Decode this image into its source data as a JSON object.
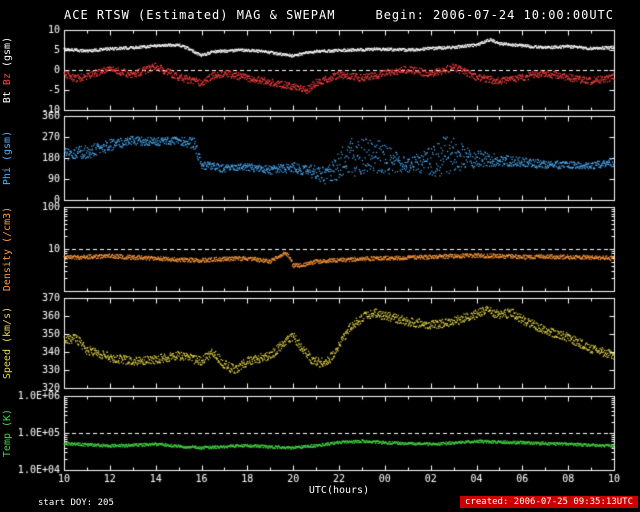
{
  "header": {
    "title": "ACE RTSW (Estimated) MAG & SWEPAM",
    "begin": "Begin: 2006-07-24 10:00:00UTC"
  },
  "footer": {
    "start_doy": "start DOY: 205",
    "created": "created: 2006-07-25 09:35:13UTC"
  },
  "colors": {
    "background": "#000000",
    "frame": "#ffffff",
    "created_badge_bg": "#cc0000"
  },
  "x": {
    "label": "UTC(hours)",
    "range_hours": [
      0,
      24
    ],
    "tick_labels": [
      "10",
      "12",
      "14",
      "16",
      "18",
      "20",
      "22",
      "00",
      "02",
      "04",
      "06",
      "08",
      "10"
    ]
  },
  "chart_data": [
    {
      "type": "scatter",
      "name": "magnetic-field",
      "ylabel_parts": [
        {
          "text": "Bt",
          "color": "#ffffff"
        },
        {
          "text": "Bz",
          "color": "#ff4040"
        },
        {
          "text": "(gsm)",
          "color": "#ffffff"
        }
      ],
      "yscale": "linear",
      "ylim": [
        -10,
        10
      ],
      "yticks": [
        {
          "v": 10,
          "label": "10"
        },
        {
          "v": 5,
          "label": "5"
        },
        {
          "v": 0,
          "label": "0"
        },
        {
          "v": -5,
          "label": "-5"
        },
        {
          "v": -10,
          "label": "-10"
        }
      ],
      "dashed_y": 0,
      "series": [
        {
          "name": "Bt",
          "color": "#ffffff",
          "noise": 0.35,
          "points": [
            [
              0,
              5.2
            ],
            [
              1,
              4.8
            ],
            [
              2,
              5.3
            ],
            [
              3,
              5.6
            ],
            [
              4,
              6.1
            ],
            [
              5,
              6.3
            ],
            [
              5.5,
              5.2
            ],
            [
              6,
              3.6
            ],
            [
              6.5,
              4.6
            ],
            [
              7,
              4.8
            ],
            [
              8,
              5.0
            ],
            [
              9,
              4.4
            ],
            [
              9.5,
              3.9
            ],
            [
              10,
              3.6
            ],
            [
              10.5,
              4.2
            ],
            [
              11,
              4.6
            ],
            [
              12,
              4.9
            ],
            [
              13,
              5.1
            ],
            [
              14,
              5.2
            ],
            [
              15,
              5.0
            ],
            [
              16,
              5.4
            ],
            [
              17,
              5.7
            ],
            [
              18,
              6.3
            ],
            [
              18.6,
              7.6
            ],
            [
              19,
              6.6
            ],
            [
              20,
              6.1
            ],
            [
              21,
              5.6
            ],
            [
              22,
              5.9
            ],
            [
              23,
              5.4
            ],
            [
              24,
              5.7
            ]
          ]
        },
        {
          "name": "Bz",
          "color": "#ff4040",
          "noise": 0.9,
          "points": [
            [
              0,
              -0.8
            ],
            [
              0.5,
              -2.2
            ],
            [
              1,
              -1.5
            ],
            [
              2,
              0.3
            ],
            [
              3,
              -1.2
            ],
            [
              4,
              1.0
            ],
            [
              5,
              -1.8
            ],
            [
              6,
              -3.2
            ],
            [
              6.5,
              -1.5
            ],
            [
              7,
              -0.8
            ],
            [
              8,
              -2.0
            ],
            [
              9,
              -3.0
            ],
            [
              10,
              -4.2
            ],
            [
              10.6,
              -5.0
            ],
            [
              11,
              -3.2
            ],
            [
              12,
              -1.2
            ],
            [
              13,
              -2.0
            ],
            [
              14,
              -0.8
            ],
            [
              15,
              0.2
            ],
            [
              16,
              -1.0
            ],
            [
              17,
              0.8
            ],
            [
              18,
              -1.8
            ],
            [
              19,
              -2.8
            ],
            [
              20,
              -1.8
            ],
            [
              21,
              -0.8
            ],
            [
              22,
              -1.8
            ],
            [
              23,
              -2.8
            ],
            [
              24,
              -1.8
            ]
          ]
        }
      ]
    },
    {
      "type": "scatter",
      "name": "phi",
      "ylabel_parts": [
        {
          "text": "Phi (gsm)",
          "color": "#4db2ff"
        }
      ],
      "yscale": "linear",
      "ylim": [
        0,
        360
      ],
      "yticks": [
        {
          "v": 360,
          "label": "360"
        },
        {
          "v": 270,
          "label": "270"
        },
        {
          "v": 180,
          "label": "180"
        },
        {
          "v": 90,
          "label": "90"
        },
        {
          "v": 0,
          "label": "0"
        }
      ],
      "dashed_y": null,
      "series": [
        {
          "name": "Phi",
          "color": "#4db2ff",
          "noise": 0,
          "points": [
            [
              0,
              195,
              25
            ],
            [
              1,
              205,
              30
            ],
            [
              2,
              235,
              25
            ],
            [
              3,
              255,
              18
            ],
            [
              4,
              250,
              18
            ],
            [
              5,
              255,
              15
            ],
            [
              5.7,
              240,
              30
            ],
            [
              6,
              150,
              20
            ],
            [
              7,
              135,
              15
            ],
            [
              8,
              142,
              15
            ],
            [
              9,
              128,
              18
            ],
            [
              10,
              140,
              22
            ],
            [
              11,
              118,
              28
            ],
            [
              11.5,
              100,
              40
            ],
            [
              12,
              150,
              60
            ],
            [
              12.5,
              185,
              85
            ],
            [
              13,
              175,
              85
            ],
            [
              13.5,
              195,
              75
            ],
            [
              14,
              175,
              65
            ],
            [
              15,
              150,
              30
            ],
            [
              16,
              165,
              60
            ],
            [
              16.5,
              185,
              85
            ],
            [
              17,
              195,
              75
            ],
            [
              17.5,
              175,
              55
            ],
            [
              18,
              178,
              35
            ],
            [
              19,
              170,
              25
            ],
            [
              20,
              162,
              20
            ],
            [
              21,
              152,
              18
            ],
            [
              22,
              150,
              15
            ],
            [
              23,
              146,
              15
            ],
            [
              24,
              162,
              18
            ]
          ]
        }
      ]
    },
    {
      "type": "scatter",
      "name": "density",
      "ylabel_parts": [
        {
          "text": "Density (/cm3)",
          "color": "#ff9a3c"
        }
      ],
      "yscale": "log",
      "ylim": [
        1,
        100
      ],
      "yticks": [
        {
          "v": 100,
          "label": "100"
        },
        {
          "v": 10,
          "label": "10"
        }
      ],
      "dashed_y": 10,
      "series": [
        {
          "name": "Density",
          "color": "#ff9a3c",
          "noise_dex": 0.05,
          "points": [
            [
              0,
              6.2
            ],
            [
              1,
              6.5
            ],
            [
              2,
              6.8
            ],
            [
              3,
              6.3
            ],
            [
              4,
              6.0
            ],
            [
              5,
              5.6
            ],
            [
              6,
              5.4
            ],
            [
              7,
              5.8
            ],
            [
              8,
              6.0
            ],
            [
              9,
              5.0
            ],
            [
              9.7,
              8.0
            ],
            [
              10,
              4.0
            ],
            [
              10.5,
              4.2
            ],
            [
              11,
              5.0
            ],
            [
              12,
              5.5
            ],
            [
              13,
              5.8
            ],
            [
              14,
              6.0
            ],
            [
              15,
              6.2
            ],
            [
              16,
              6.5
            ],
            [
              17,
              6.8
            ],
            [
              18,
              7.0
            ],
            [
              19,
              6.8
            ],
            [
              20,
              6.5
            ],
            [
              21,
              6.6
            ],
            [
              22,
              6.5
            ],
            [
              23,
              6.3
            ],
            [
              24,
              6.0
            ]
          ]
        }
      ]
    },
    {
      "type": "scatter",
      "name": "speed",
      "ylabel_parts": [
        {
          "text": "Speed (km/s)",
          "color": "#e6d84a"
        }
      ],
      "yscale": "linear",
      "ylim": [
        320,
        370
      ],
      "yticks": [
        {
          "v": 370,
          "label": "370"
        },
        {
          "v": 360,
          "label": "360"
        },
        {
          "v": 350,
          "label": "350"
        },
        {
          "v": 340,
          "label": "340"
        },
        {
          "v": 330,
          "label": "330"
        },
        {
          "v": 320,
          "label": "320"
        }
      ],
      "dashed_y": null,
      "series": [
        {
          "name": "Speed",
          "color": "#e6d84a",
          "noise": 2.5,
          "points": [
            [
              0,
              346
            ],
            [
              0.5,
              348
            ],
            [
              1,
              341
            ],
            [
              2,
              337
            ],
            [
              3,
              335
            ],
            [
              4,
              336
            ],
            [
              5,
              338
            ],
            [
              6,
              335
            ],
            [
              6.5,
              340
            ],
            [
              7,
              333
            ],
            [
              7.5,
              330
            ],
            [
              8,
              335
            ],
            [
              9,
              338
            ],
            [
              9.7,
              346
            ],
            [
              10,
              349
            ],
            [
              10.4,
              342
            ],
            [
              10.8,
              336
            ],
            [
              11.2,
              334
            ],
            [
              11.6,
              336
            ],
            [
              12,
              344
            ],
            [
              12.5,
              354
            ],
            [
              13,
              359
            ],
            [
              13.5,
              362
            ],
            [
              14,
              360
            ],
            [
              15,
              357
            ],
            [
              16,
              355
            ],
            [
              17,
              357
            ],
            [
              18,
              361
            ],
            [
              18.5,
              364
            ],
            [
              19,
              360
            ],
            [
              19.5,
              362
            ],
            [
              20,
              358
            ],
            [
              21,
              352
            ],
            [
              22,
              348
            ],
            [
              23,
              342
            ],
            [
              24,
              338
            ]
          ]
        }
      ]
    },
    {
      "type": "scatter",
      "name": "temperature",
      "ylabel_parts": [
        {
          "text": "Temp (K)",
          "color": "#44d544"
        }
      ],
      "yscale": "log",
      "ylim": [
        10000,
        1000000
      ],
      "yticks": [
        {
          "v": 1000000,
          "label": "1.0E+06"
        },
        {
          "v": 100000,
          "label": "1.0E+05"
        },
        {
          "v": 10000,
          "label": "1.0E+04"
        }
      ],
      "dashed_y": 100000,
      "series": [
        {
          "name": "Temp",
          "color": "#44d544",
          "noise_dex": 0.04,
          "points": [
            [
              0,
              52000
            ],
            [
              1,
              48000
            ],
            [
              2,
              45000
            ],
            [
              3,
              47000
            ],
            [
              4,
              50000
            ],
            [
              5,
              44000
            ],
            [
              6,
              40000
            ],
            [
              7,
              43000
            ],
            [
              8,
              46000
            ],
            [
              9,
              42000
            ],
            [
              10,
              40000
            ],
            [
              11,
              46000
            ],
            [
              12,
              55000
            ],
            [
              13,
              60000
            ],
            [
              14,
              55000
            ],
            [
              15,
              52000
            ],
            [
              16,
              50000
            ],
            [
              17,
              54000
            ],
            [
              18,
              60000
            ],
            [
              19,
              57000
            ],
            [
              20,
              55000
            ],
            [
              21,
              52000
            ],
            [
              22,
              50000
            ],
            [
              23,
              47000
            ],
            [
              24,
              45000
            ]
          ]
        }
      ]
    }
  ]
}
